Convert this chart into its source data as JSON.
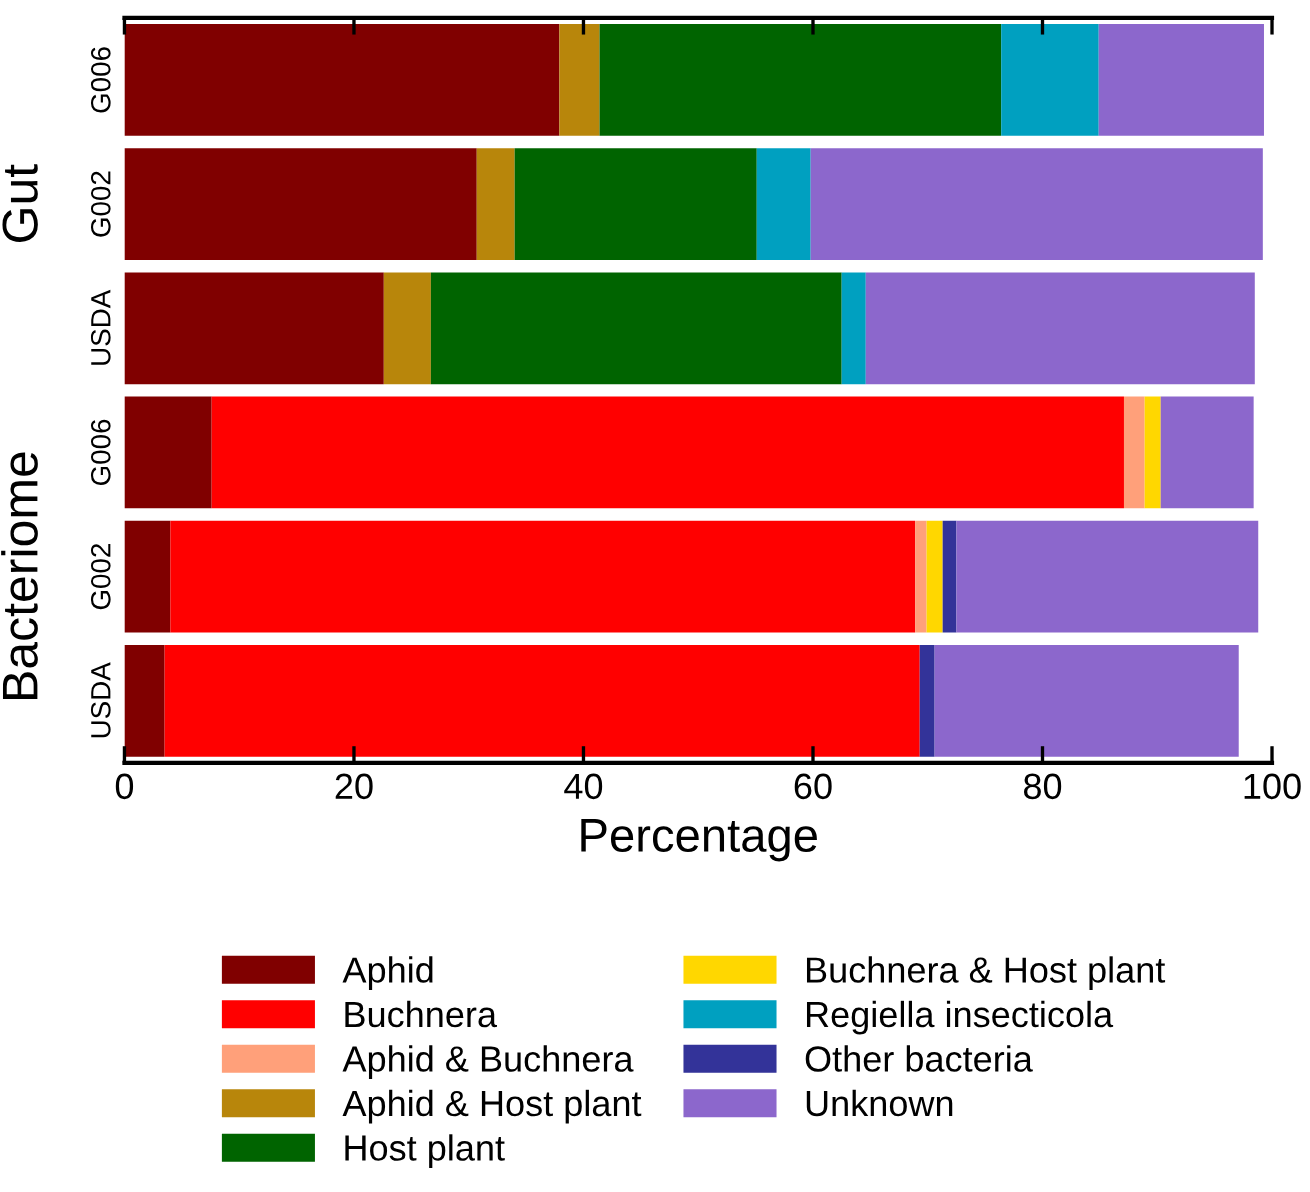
{
  "chart_data": {
    "type": "bar",
    "orientation": "horizontal",
    "stacked": true,
    "categories": [
      "G006",
      "G002",
      "USDA",
      "G006",
      "G002",
      "USDA"
    ],
    "series": [
      {
        "name": "Aphid",
        "color": "#800000",
        "values": [
          37.9,
          30.7,
          22.6,
          7.6,
          4.0,
          3.5
        ]
      },
      {
        "name": "Buchnera",
        "color": "#ff0000",
        "values": [
          null,
          null,
          null,
          79.5,
          64.9,
          65.8
        ]
      },
      {
        "name": "Aphid & Buchnera",
        "color": "#ffa07a",
        "values": [
          null,
          null,
          null,
          1.8,
          1.0,
          null
        ]
      },
      {
        "name": "Aphid & Host plant",
        "color": "#b8860b",
        "values": [
          3.5,
          3.3,
          4.1,
          null,
          null,
          null
        ]
      },
      {
        "name": "Host plant",
        "color": "#006400",
        "values": [
          35.0,
          21.1,
          35.8,
          null,
          null,
          null
        ]
      },
      {
        "name": "Buchnera & Host plant",
        "color": "#ffd700",
        "values": [
          null,
          null,
          null,
          1.4,
          1.4,
          null
        ]
      },
      {
        "name": "Regiella insecticola",
        "color": "#00a0c0",
        "values": [
          8.5,
          4.7,
          2.1,
          null,
          null,
          null
        ]
      },
      {
        "name": "Other bacteria",
        "color": "#333399",
        "values": [
          null,
          null,
          null,
          null,
          1.2,
          1.3
        ]
      },
      {
        "name": "Unknown",
        "color": "#8c67cc",
        "values": [
          14.4,
          39.4,
          33.9,
          8.1,
          26.3,
          26.5
        ]
      }
    ],
    "xlabel": "Percentage",
    "xlim": [
      0,
      100
    ],
    "xticks": [
      0,
      20,
      40,
      60,
      80,
      100
    ],
    "annotations": [
      "Gut",
      "Bacteriome"
    ],
    "legend": "bottom",
    "grid": false
  }
}
